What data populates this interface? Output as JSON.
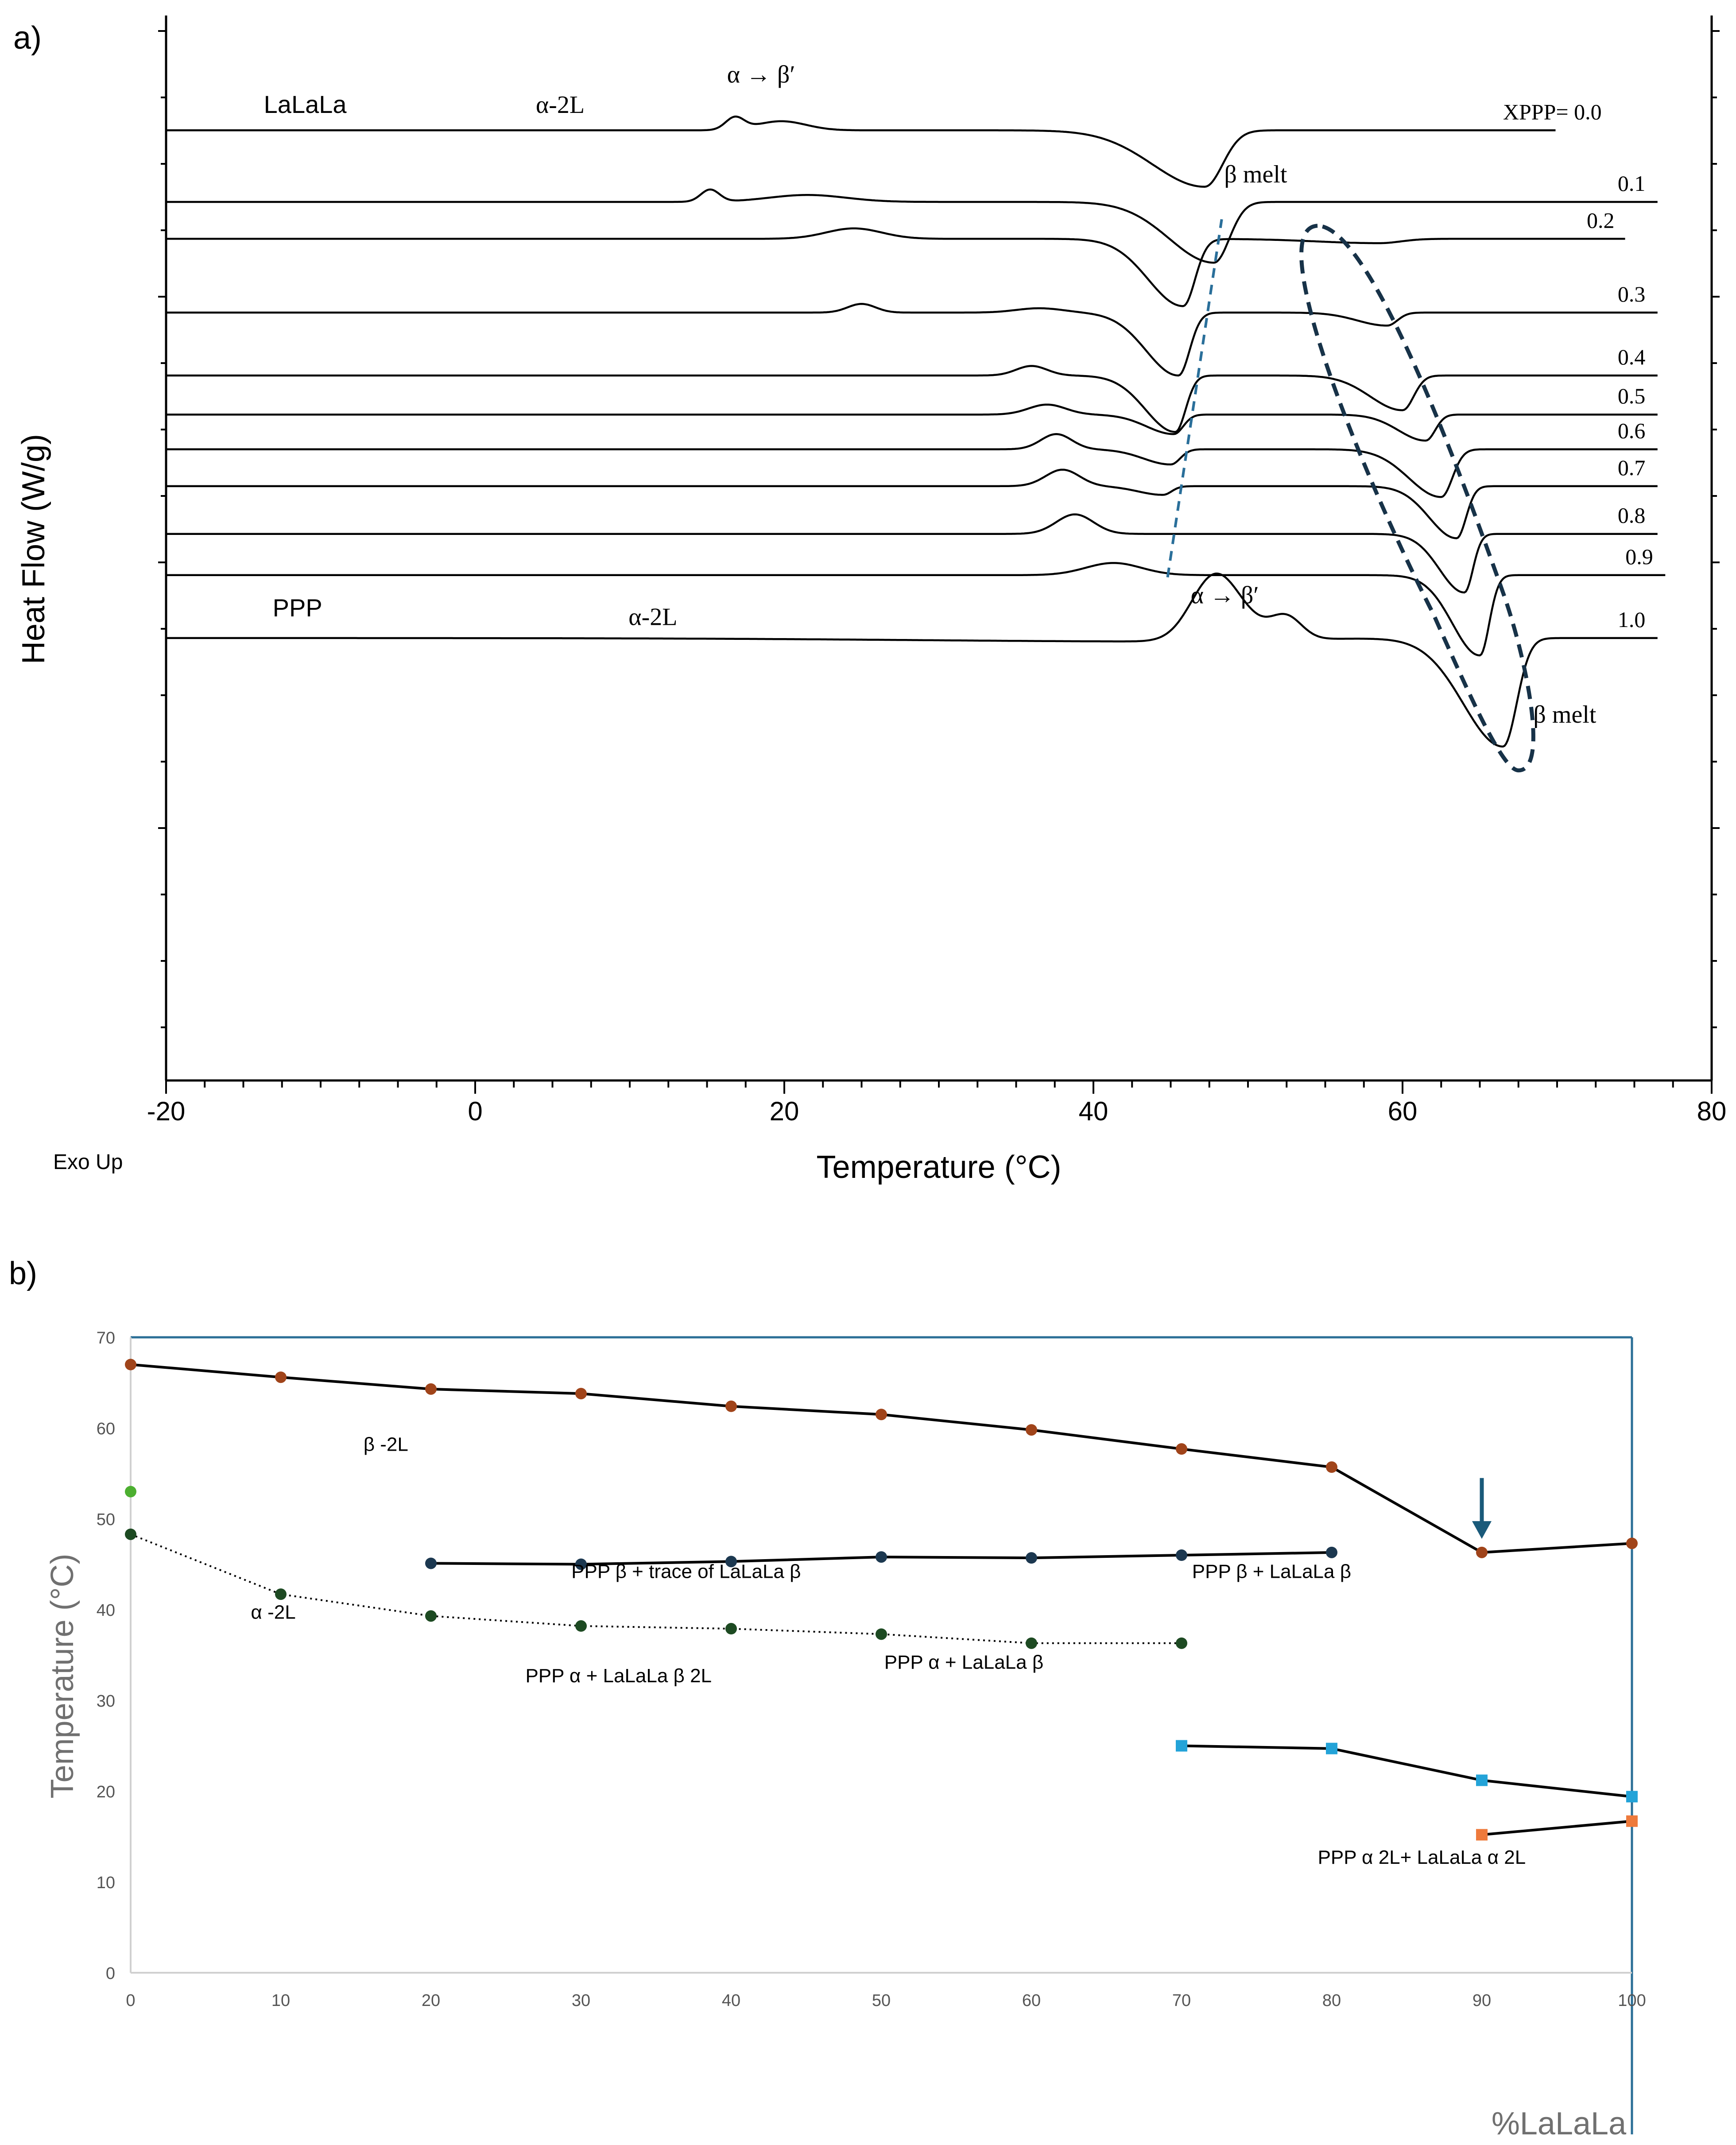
{
  "panel_a_label": "a)",
  "panel_b_label": "b)",
  "chart_data": [
    {
      "type": "line",
      "title": "",
      "xlabel": "Temperature (°C)",
      "ylabel": "Heat Flow (W/g)",
      "corner_note": "Exo Up",
      "xlim": [
        -20,
        80
      ],
      "x_ticks": [
        "-20",
        "0",
        "20",
        "40",
        "60",
        "80"
      ],
      "series": [
        {
          "name": "0.0",
          "label": "XPPP= 0.0",
          "offset": 96.5,
          "end": 70,
          "peaks": [
            [
              16.8,
              2.8,
              0.6
            ],
            [
              19.8,
              2.1,
              1.6
            ]
          ],
          "dips": [
            [
              47.2,
              2.1,
              13
            ]
          ]
        },
        {
          "name": "0.1",
          "label": "0.1",
          "offset": 80,
          "end": 76.5,
          "peaks": [
            [
              15.2,
              2.8,
              0.6
            ],
            [
              21.5,
              1.6,
              2.5
            ]
          ],
          "dips": [
            [
              47.8,
              1.8,
              14
            ]
          ]
        },
        {
          "name": "0.2",
          "label": "0.2",
          "offset": 71.5,
          "end": 74.5,
          "peaks": [
            [
              24.5,
              2.4,
              1.8
            ]
          ],
          "dips": [
            [
              45.8,
              1.4,
              15.5
            ],
            [
              58.5,
              2.5,
              1
            ]
          ]
        },
        {
          "name": "0.3",
          "label": "0.3",
          "offset": 54.5,
          "end": 76.5,
          "peaks": [
            [
              25.0,
              2.0,
              0.9
            ],
            [
              36.5,
              1.0,
              1.5
            ]
          ],
          "dips": [
            [
              45.5,
              1.3,
              14.5
            ],
            [
              59.0,
              1.2,
              3
            ]
          ]
        },
        {
          "name": "0.4",
          "label": "0.4",
          "offset": 40,
          "end": 76.5,
          "peaks": [
            [
              36.0,
              2.2,
              1.0
            ]
          ],
          "dips": [
            [
              45.3,
              1.2,
              13
            ],
            [
              60.0,
              1.3,
              8
            ]
          ]
        },
        {
          "name": "0.5",
          "label": "0.5",
          "offset": 31,
          "end": 76.5,
          "peaks": [
            [
              37.0,
              2.3,
              1.2
            ]
          ],
          "dips": [
            [
              45.2,
              1.1,
              4.5
            ],
            [
              61.5,
              1.1,
              6
            ]
          ]
        },
        {
          "name": "0.6",
          "label": "0.6",
          "offset": 23,
          "end": 76.5,
          "peaks": [
            [
              37.6,
              3.5,
              1.0
            ]
          ],
          "dips": [
            [
              45.0,
              1.1,
              3.5
            ],
            [
              62.5,
              1.3,
              11
            ]
          ]
        },
        {
          "name": "0.7",
          "label": "0.7",
          "offset": 14.5,
          "end": 76.5,
          "peaks": [
            [
              38.0,
              3.8,
              1.1
            ]
          ],
          "dips": [
            [
              44.5,
              1.0,
              2
            ],
            [
              63.5,
              1.1,
              12
            ]
          ]
        },
        {
          "name": "0.8",
          "label": "0.8",
          "offset": 3.5,
          "end": 76.5,
          "peaks": [
            [
              38.8,
              4.5,
              1.2
            ]
          ],
          "dips": [
            [
              64.0,
              1.0,
              13.5
            ]
          ]
        },
        {
          "name": "0.9",
          "label": "0.9",
          "offset": -6,
          "end": 77,
          "peaks": [
            [
              41.3,
              2.8,
              1.8
            ]
          ],
          "dips": [
            [
              65.0,
              1.1,
              18.5
            ]
          ]
        },
        {
          "name": "1.0",
          "label": "1.0",
          "offset": -20.5,
          "end": 76.5,
          "peaks": [
            [
              47.8,
              14.5,
              1.5
            ],
            [
              52.5,
              5.0,
              1.0
            ],
            [
              50.0,
              3.0,
              1.5
            ]
          ],
          "dips": [
            [
              45.8,
              10.5,
              0.8
            ],
            [
              66.5,
              1.6,
              25
            ]
          ]
        }
      ],
      "annotations": [
        {
          "text": "LaLaLa",
          "x": -11,
          "y": 100.5
        },
        {
          "text": "α-2L",
          "x": 5.5,
          "y": 100.5
        },
        {
          "text": "α → β′",
          "x": 18.5,
          "y": 107.5
        },
        {
          "text": "β melt",
          "x": 50.5,
          "y": 84.5
        },
        {
          "text": "PPP",
          "x": -11.5,
          "y": -15.5
        },
        {
          "text": "α-2L",
          "x": 11.5,
          "y": -17.5
        },
        {
          "text": "α → β′",
          "x": 48.5,
          "y": -12.5
        },
        {
          "text": "β melt",
          "x": 70.5,
          "y": -40
        }
      ],
      "guides": [
        "dashed line through LaLaLa β melt minima",
        "dashed ellipse around PPP β melt minima"
      ]
    },
    {
      "type": "line",
      "title": "",
      "xlabel": "%LaLaLa",
      "ylabel": "Temperature (°C)",
      "xlim": [
        0,
        100
      ],
      "ylim": [
        0,
        70
      ],
      "x_ticks": [
        "0",
        "10",
        "20",
        "30",
        "40",
        "50",
        "60",
        "70",
        "80",
        "90",
        "100"
      ],
      "y_ticks": [
        "0",
        "10",
        "20",
        "30",
        "40",
        "50",
        "60",
        "70"
      ],
      "series": [
        {
          "name": "β melt (upper liquidus)",
          "color": "#a0441a",
          "marker": "circle",
          "line": "solid",
          "x": [
            0,
            10,
            20,
            30,
            40,
            50,
            60,
            70,
            80,
            90,
            100
          ],
          "y": [
            67.0,
            65.6,
            64.3,
            63.8,
            62.4,
            61.5,
            59.8,
            57.7,
            55.7,
            46.3,
            47.3
          ]
        },
        {
          "name": "PPP β + LaLaLa β",
          "color": "#1c3850",
          "marker": "circle",
          "line": "solid",
          "x": [
            20,
            30,
            40,
            50,
            60,
            70,
            80
          ],
          "y": [
            45.1,
            45.0,
            45.3,
            45.8,
            45.7,
            46.0,
            46.3
          ]
        },
        {
          "name": "α-2L",
          "color": "#1d4a22",
          "marker": "circle",
          "line": "dotted",
          "x": [
            0,
            10,
            20,
            30,
            40,
            50,
            60,
            70
          ],
          "y": [
            48.3,
            41.7,
            39.3,
            38.2,
            37.9,
            37.3,
            36.3,
            36.3
          ]
        },
        {
          "name": "green point",
          "color": "#4caf30",
          "marker": "circle",
          "line": "none",
          "x": [
            0
          ],
          "y": [
            53.0
          ]
        },
        {
          "name": "α→β′ (blue squares)",
          "color": "#23a3d8",
          "marker": "square",
          "line": "solid",
          "x": [
            70,
            80,
            90,
            100
          ],
          "y": [
            25.0,
            24.7,
            21.2,
            19.4
          ]
        },
        {
          "name": "α→β′ (orange squares)",
          "color": "#ee7a3c",
          "marker": "square",
          "line": "solid",
          "x": [
            90,
            100
          ],
          "y": [
            15.2,
            16.7
          ]
        }
      ],
      "annotations": [
        {
          "text": "β -2L",
          "x": 17,
          "y": 57.5
        },
        {
          "text": "PPP β + trace of  LaLaLa β",
          "x": 37,
          "y": 43.5
        },
        {
          "text": "PPP β + LaLaLa β",
          "x": 76,
          "y": 43.5
        },
        {
          "text": "α -2L",
          "x": 9.5,
          "y": 39
        },
        {
          "text": "PPP α + LaLaLa β 2L",
          "x": 32.5,
          "y": 32
        },
        {
          "text": "PPP α + LaLaLa β",
          "x": 55.5,
          "y": 33.5
        },
        {
          "text": "PPP α 2L+ LaLaLa α 2L",
          "x": 86,
          "y": 12
        }
      ],
      "arrow": {
        "x": 90,
        "y_from": 54.5,
        "y_to": 47.8,
        "color": "#1a5a7a"
      }
    }
  ]
}
